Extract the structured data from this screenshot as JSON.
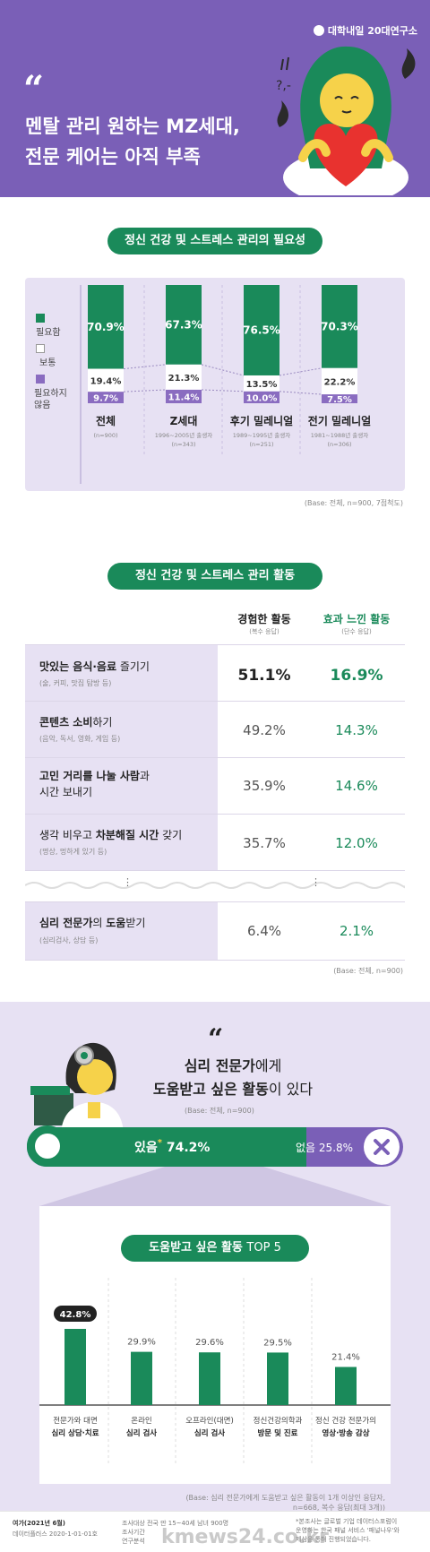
{
  "header": {
    "brand": "대학내일 20대연구소",
    "quote": "“",
    "title_line1": "멘탈 관리 원하는 MZ세대,",
    "title_line2": "전문 케어는 아직 부족"
  },
  "colors": {
    "purple": "#7a5fb7",
    "lavender": "#e7e1f3",
    "green": "#1a8a5a",
    "red": "#e8322f",
    "white": "#ffffff"
  },
  "section1": {
    "title": "정신 건강 및 스트레스 관리의 필요성",
    "legend": [
      {
        "label": "필요함",
        "color": "#1a8a5a"
      },
      {
        "label": "보통",
        "color": "#ffffff"
      },
      {
        "label": "필요하지\n않음",
        "color": "#8a6cc0"
      }
    ],
    "base": "(Base: 전체, n=900, 7점척도)"
  },
  "chart_data": {
    "type": "bar",
    "title": "정신 건강 및 스트레스 관리의 필요성",
    "categories": [
      "전체",
      "Z세대",
      "후기 밀레니얼",
      "전기 밀레니얼"
    ],
    "category_subs": [
      "(n=900)",
      "1996~2005년 출생자\n(n=343)",
      "1989~1995년 출생자\n(n=251)",
      "1981~1988년 출생자\n(n=306)"
    ],
    "series": [
      {
        "name": "필요함",
        "values": [
          70.9,
          67.3,
          76.5,
          70.3
        ],
        "labels": [
          "70.9%",
          "67.3%",
          "76.5%",
          "70.3%"
        ]
      },
      {
        "name": "보통",
        "values": [
          19.4,
          21.3,
          13.5,
          22.2
        ],
        "labels": [
          "19.4%",
          "21.3%",
          "13.5%",
          "22.2%"
        ]
      },
      {
        "name": "필요하지 않음",
        "values": [
          9.7,
          11.4,
          10.0,
          7.5
        ],
        "labels": [
          "9.7%",
          "11.4%",
          "10.0%",
          "7.5%"
        ]
      }
    ],
    "stacked": true,
    "ylim": [
      0,
      100
    ]
  },
  "section2": {
    "title": "정신 건강 및 스트레스 관리 활동",
    "col_exp": "경험한 활동",
    "col_exp_sub": "(복수 응답)",
    "col_eff": "효과 느낀 활동",
    "col_eff_sub": "(단수 응답)",
    "dots": "⋮",
    "base": "(Base: 전체, n=900)",
    "rows": [
      {
        "l1a": "맛있는 음식·음료",
        "l1b": " 즐기기",
        "l2": "",
        "sub": "(술, 커피, 맛집 탐방 등)",
        "exp": "51.1%",
        "eff": "16.9%"
      },
      {
        "l1a": "콘텐츠 소비",
        "l1b": "하기",
        "l2": "",
        "sub": "(음악, 독서, 영화, 게임 등)",
        "exp": "49.2%",
        "eff": "14.3%"
      },
      {
        "l1a": "고민 거리를 나눌 사람",
        "l1b": "과",
        "l2": "시간 보내기",
        "sub": "",
        "exp": "35.9%",
        "eff": "14.6%"
      },
      {
        "l1a": "차분해질 시간",
        "l1b": " 갖기",
        "pre": "생각 비우고 ",
        "l2": "",
        "sub": "(명상, 멍하게 있기 등)",
        "exp": "35.7%",
        "eff": "12.0%"
      },
      {
        "l1a": "심리 전문가",
        "l1b": "의 ",
        "l1c": "도움",
        "l1d": "받기",
        "l2": "",
        "sub": "(심리검사, 상담 등)",
        "exp": "6.4%",
        "eff": "2.1%"
      }
    ]
  },
  "section3": {
    "quote": "“",
    "title_a": "심리 전문가",
    "title_b": "에게",
    "title_c": "도움받고 싶은 활동",
    "title_d": "이 있다",
    "base": "(Base: 전체, n=900)",
    "yes_label": "있음",
    "yes_mark": "*",
    "yes_value": "74.2%",
    "yes_pct": 74.2,
    "no_label": "없음",
    "no_value": "25.8%",
    "note": "*도움받고 싶은 활동이 1개 이상인 응답자"
  },
  "section4": {
    "title": "도움받고 싶은 활동",
    "title_suffix": "TOP 5",
    "base_l1": "(Base: 심리 전문가에게 도움받고 싶은 활동이 1개 이상인 응답자,",
    "base_l2": "n=668, 복수 응답(최대 3개))",
    "bars": [
      {
        "value": 42.8,
        "label": "42.8%",
        "l1": "전문가와 대면",
        "l2": "심리 상담·치료"
      },
      {
        "value": 29.9,
        "label": "29.9%",
        "l1": "온라인",
        "l2": "심리 검사"
      },
      {
        "value": 29.6,
        "label": "29.6%",
        "l1": "오프라인(대면)",
        "l2": "심리 검사"
      },
      {
        "value": 29.5,
        "label": "29.5%",
        "l1": "정신건강의학과",
        "l2": "방문 및 진료"
      },
      {
        "value": 21.4,
        "label": "21.4%",
        "l1": "정신 건강 전문가의",
        "l2": "영상·방송 감상"
      }
    ]
  },
  "footer": {
    "col1_l1": "여가(2021년 6월)",
    "col1_l2": "데이터플러스 2020-1-01-01호",
    "col2_l1": "조사대상   전국 만 15~40세 남녀 900명",
    "col2_l2": "조사기간",
    "col2_l3": "연구분석",
    "col3_l1": "*본조사는 글로벌 기업 데이터스포럼이",
    "col3_l2": "운영하는 한국 패널 서비스 '패널나우'와",
    "col3_l3": "제삼을 통해 진행되었습니다.",
    "watermark": "kmews24.co.kr"
  }
}
